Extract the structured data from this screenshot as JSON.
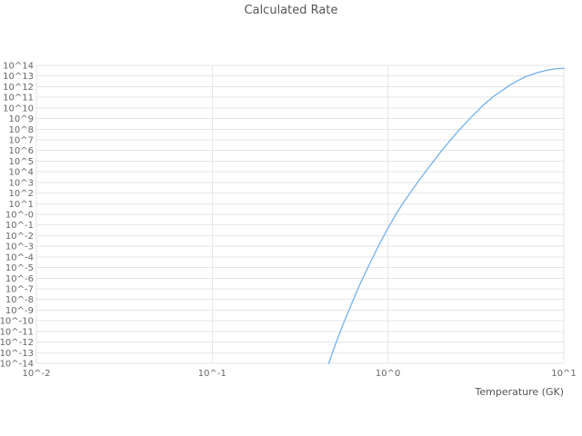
{
  "title": "Calculated Rate",
  "x_axis": {
    "label": "Temperature (GK)",
    "tick_labels": [
      "10^-2",
      "10^-1",
      "10^0",
      "10^1"
    ],
    "tick_exponents": [
      -2,
      -1,
      0,
      1
    ]
  },
  "y_axis": {
    "label": "",
    "tick_labels": [
      "10^14",
      "10^13",
      "10^12",
      "10^11",
      "10^10",
      "10^9",
      "10^8",
      "10^7",
      "10^6",
      "10^5",
      "10^4",
      "10^3",
      "10^2",
      "10^1",
      "10^-0",
      "10^-1",
      "10^-2",
      "10^-3",
      "10^-4",
      "10^-5",
      "10^-6",
      "10^-7",
      "10^-8",
      "10^-9",
      "10^-10",
      "10^-11",
      "10^-12",
      "10^-13",
      "10^-14"
    ],
    "tick_exponents": [
      14,
      13,
      12,
      11,
      10,
      9,
      8,
      7,
      6,
      5,
      4,
      3,
      2,
      1,
      0,
      -1,
      -2,
      -3,
      -4,
      -5,
      -6,
      -7,
      -8,
      -9,
      -10,
      -11,
      -12,
      -13,
      -14
    ]
  },
  "colors": {
    "line": "#7cb5ec",
    "grid": "#e6e6e6",
    "tick_text": "#666666",
    "title_text": "#555555",
    "background": "#ffffff"
  },
  "chart_data": {
    "type": "line",
    "title": "Calculated Rate",
    "xlabel": "Temperature (GK)",
    "ylabel": "",
    "x_scale": "log",
    "y_scale": "log",
    "xlim": [
      0.01,
      10
    ],
    "ylim": [
      1e-14,
      100000000000000.0
    ],
    "grid": true,
    "legend": false,
    "series": [
      {
        "name": "Calculated Rate",
        "color": "#7cb5ec",
        "points": [
          [
            0.46,
            1e-14
          ],
          [
            0.5,
            5e-13
          ],
          [
            0.55,
            3.2e-11
          ],
          [
            0.6,
            1e-09
          ],
          [
            0.65,
            2.5e-08
          ],
          [
            0.7,
            4e-07
          ],
          [
            0.8,
            4e-05
          ],
          [
            0.9,
            0.002
          ],
          [
            1.0,
            0.05
          ],
          [
            1.1,
            0.8
          ],
          [
            1.2,
            8
          ],
          [
            1.5,
            1600.0
          ],
          [
            2.0,
            800000.0
          ],
          [
            2.5,
            63000000.0
          ],
          [
            3.0,
            1600000000.0
          ],
          [
            3.5,
            20000000000.0
          ],
          [
            4.0,
            130000000000.0
          ],
          [
            5.0,
            1600000000000.0
          ],
          [
            6.0,
            8000000000000.0
          ],
          [
            7.0,
            20000000000000.0
          ],
          [
            8.0,
            35000000000000.0
          ],
          [
            9.0,
            48000000000000.0
          ],
          [
            10.0,
            52000000000000.0
          ]
        ]
      }
    ]
  }
}
